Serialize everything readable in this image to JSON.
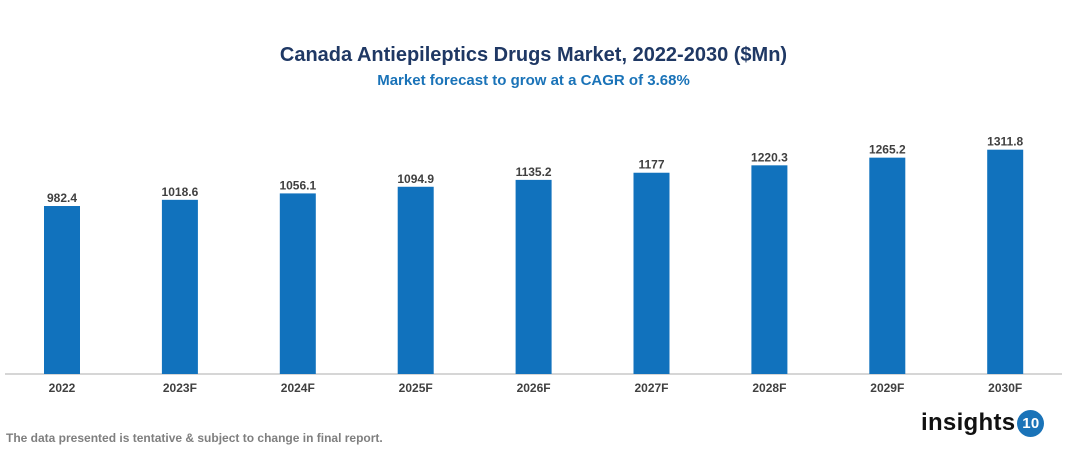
{
  "chart_data": {
    "type": "bar",
    "title": "Canada Antiepileptics Drugs Market, 2022-2030 ($Mn)",
    "subtitle": "Market forecast to grow at a CAGR of 3.68%",
    "categories": [
      "2022",
      "2023F",
      "2024F",
      "2025F",
      "2026F",
      "2027F",
      "2028F",
      "2029F",
      "2030F"
    ],
    "values": [
      982.4,
      1018.6,
      1056.1,
      1094.9,
      1135.2,
      1177,
      1220.3,
      1265.2,
      1311.8
    ],
    "value_labels": [
      "982.4",
      "1018.6",
      "1056.1",
      "1094.9",
      "1135.2",
      "1177",
      "1220.3",
      "1265.2",
      "1311.8"
    ],
    "xlabel": "",
    "ylabel": "",
    "ylim": [
      0,
      1400
    ],
    "grid": false,
    "bar_color": "#1172bd"
  },
  "footnote": "The data presented is tentative & subject to change in final report.",
  "logo": {
    "text": "insights",
    "badge": "10"
  }
}
